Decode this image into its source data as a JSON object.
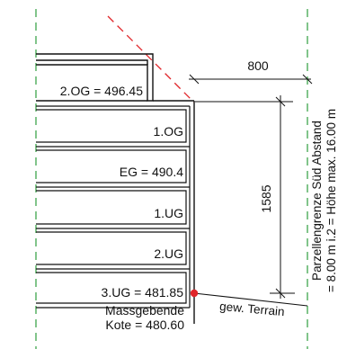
{
  "colors": {
    "line": "#111111",
    "guide": "#2e9e3e",
    "slope": "#e0252a",
    "point": "#e0252a",
    "background": "#ffffff"
  },
  "floors": {
    "og2": "2.OG = 496.45",
    "og1": "1.OG",
    "eg": "EG = 490.4",
    "ug1": "1.UG",
    "ug2": "2.UG",
    "ug3": "3.UG = 481.85"
  },
  "massgebende": {
    "line1": "Massgebende",
    "line2": "Kote = 480.60"
  },
  "terrain": "gew. Terrain",
  "dimensions": {
    "horizontal": "800",
    "vertical": "1585"
  },
  "boundary": {
    "line1": "Parzellengrenze Süd Abstand",
    "line2": "= 8.00 m i.2 = Höhe max. 16.00 m"
  }
}
